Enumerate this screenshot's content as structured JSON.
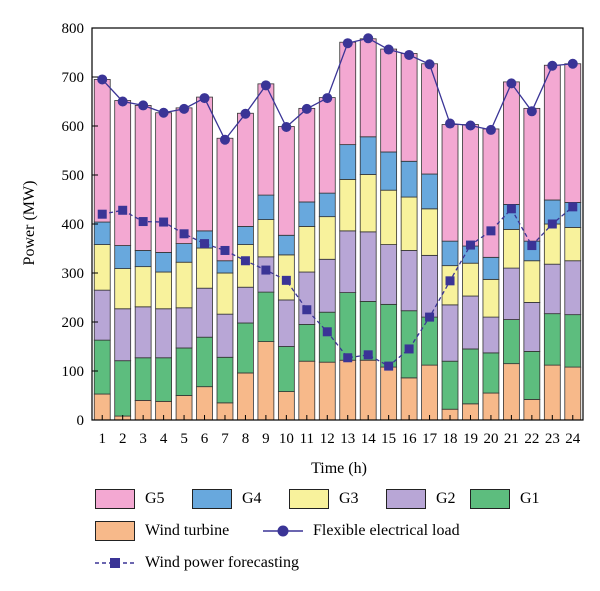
{
  "chart_data": {
    "type": "bar",
    "stacked": true,
    "xlabel": "Time (h)",
    "ylabel": "Power (MW)",
    "ylim": [
      0,
      800
    ],
    "yticks": [
      0,
      100,
      200,
      300,
      400,
      500,
      600,
      700,
      800
    ],
    "categories": [
      "1",
      "2",
      "3",
      "4",
      "5",
      "6",
      "7",
      "8",
      "9",
      "10",
      "11",
      "12",
      "13",
      "14",
      "15",
      "16",
      "17",
      "18",
      "19",
      "20",
      "21",
      "22",
      "23",
      "24"
    ],
    "series": [
      {
        "name": "Wind turbine",
        "color": "#f7b98a",
        "values": [
          53,
          8,
          40,
          38,
          50,
          68,
          35,
          96,
          160,
          58,
          120,
          118,
          122,
          122,
          108,
          86,
          112,
          22,
          33,
          55,
          115,
          42,
          112,
          108
        ]
      },
      {
        "name": "G1",
        "color": "#5dbd7e",
        "values": [
          110,
          113,
          87,
          89,
          97,
          101,
          93,
          102,
          101,
          92,
          75,
          102,
          138,
          120,
          128,
          137,
          98,
          98,
          112,
          82,
          90,
          98,
          105,
          107
        ]
      },
      {
        "name": "G2",
        "color": "#b8a6d6",
        "values": [
          102,
          106,
          104,
          100,
          82,
          100,
          88,
          73,
          72,
          95,
          107,
          108,
          126,
          142,
          122,
          123,
          126,
          115,
          108,
          73,
          105,
          100,
          101,
          110
        ]
      },
      {
        "name": "G3",
        "color": "#f8f29c",
        "values": [
          93,
          82,
          82,
          75,
          93,
          82,
          84,
          87,
          76,
          92,
          93,
          87,
          105,
          117,
          111,
          109,
          95,
          80,
          67,
          77,
          79,
          85,
          82,
          68
        ]
      },
      {
        "name": "G4",
        "color": "#68a8dd",
        "values": [
          46,
          47,
          33,
          40,
          38,
          35,
          25,
          37,
          50,
          40,
          50,
          48,
          71,
          77,
          78,
          73,
          71,
          50,
          35,
          45,
          51,
          40,
          49,
          51
        ]
      },
      {
        "name": "G5",
        "color": "#f3a8d2",
        "values": [
          291,
          296,
          296,
          285,
          277,
          273,
          250,
          231,
          227,
          222,
          191,
          195,
          209,
          200,
          210,
          220,
          225,
          238,
          248,
          262,
          250,
          271,
          275,
          283
        ]
      }
    ],
    "lines": [
      {
        "name": "Flexible electrical load",
        "marker": "circle",
        "color": "#3a3496",
        "values": [
          695,
          650,
          642,
          627,
          635,
          657,
          572,
          625,
          683,
          598,
          635,
          657,
          769,
          779,
          756,
          745,
          726,
          605,
          601,
          592,
          687,
          630,
          723,
          727
        ]
      },
      {
        "name": "Wind power forecasting",
        "marker": "square",
        "color": "#3a3496",
        "values": [
          420,
          428,
          405,
          404,
          380,
          360,
          346,
          325,
          306,
          285,
          225,
          180,
          127,
          133,
          110,
          145,
          210,
          284,
          357,
          386,
          431,
          356,
          400,
          435
        ]
      }
    ],
    "legend_placement": "bottom"
  }
}
